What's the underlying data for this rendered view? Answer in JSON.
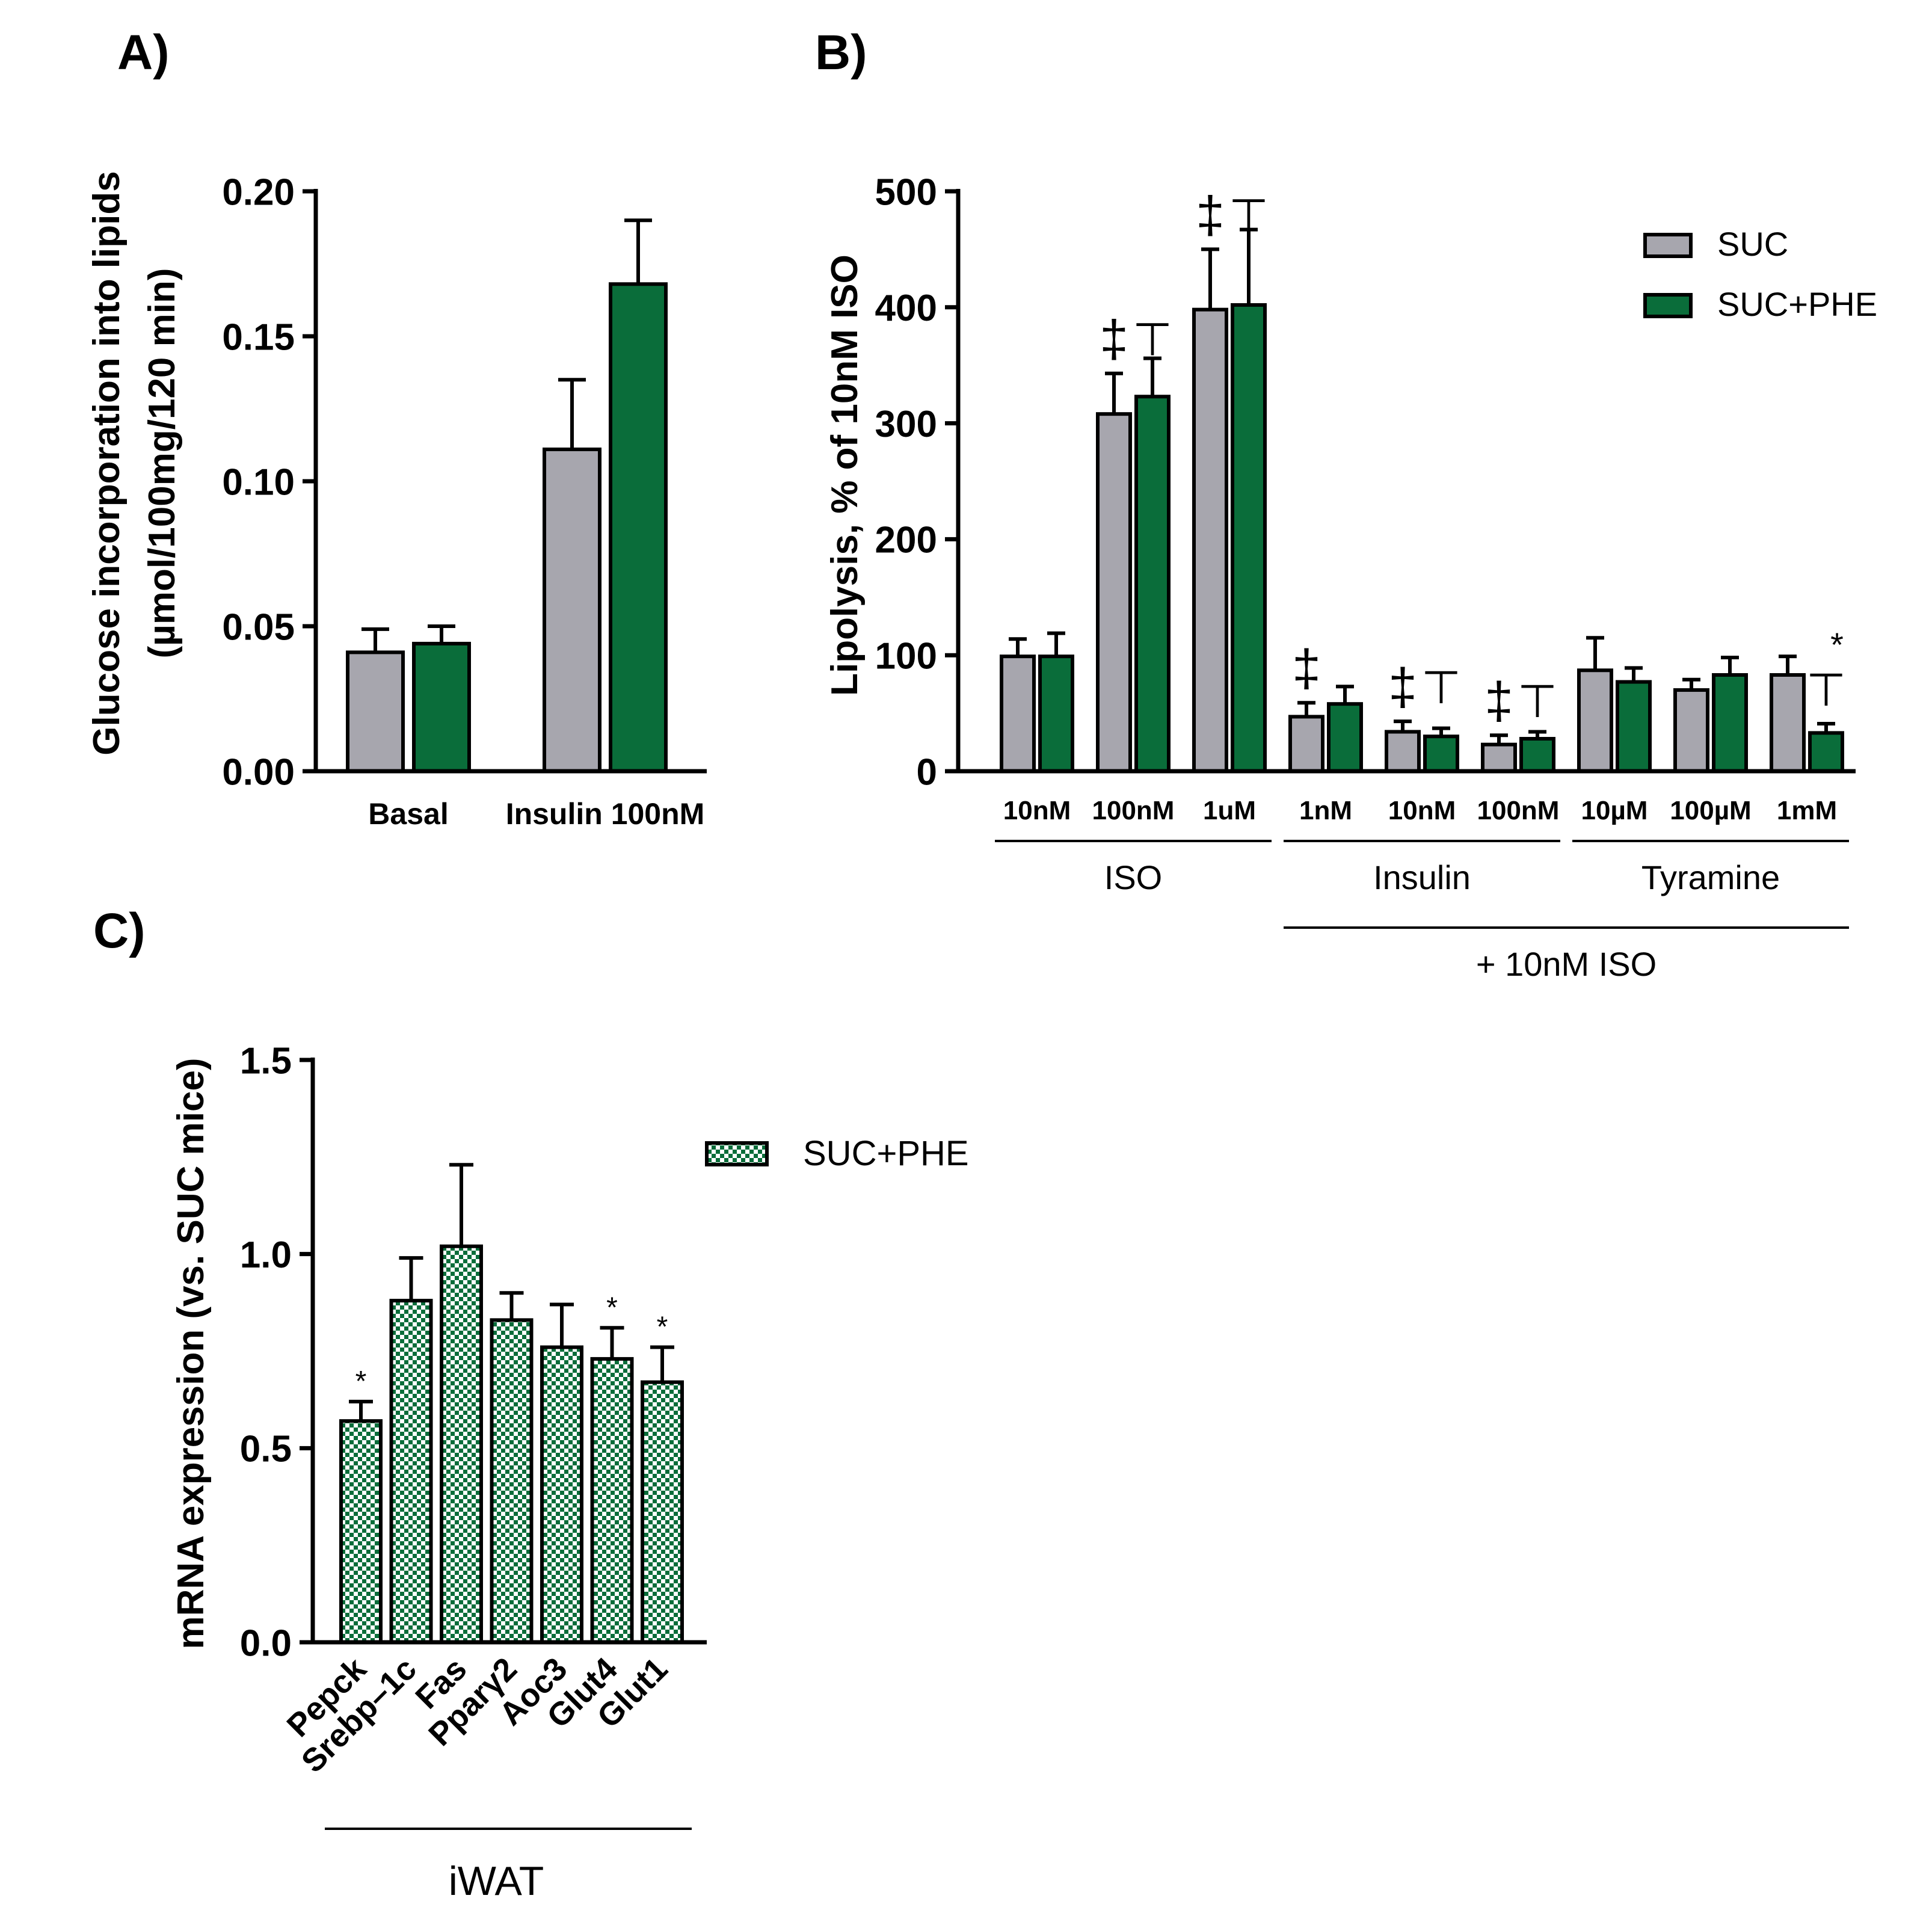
{
  "colors": {
    "suc": "#a7a6ae",
    "suc_phe": "#0a6d3a",
    "check_light": "#ffffff",
    "axis": "#000000"
  },
  "chart_data": [
    {
      "id": "A",
      "panel_label": "A)",
      "type": "bar",
      "ylabel_line1": "Glucose incorporation into lipids",
      "ylabel_line2": "(µmol/100mg/120 min)",
      "ylim": [
        0,
        0.2
      ],
      "yticks": [
        "0.00",
        "0.05",
        "0.10",
        "0.15",
        "0.20"
      ],
      "ytick_values": [
        0,
        0.05,
        0.1,
        0.15,
        0.2
      ],
      "categories": [
        "Basal",
        "Insulin 100nM"
      ],
      "series": [
        {
          "name": "SUC",
          "values": [
            0.041,
            0.111
          ],
          "errors": [
            0.008,
            0.024
          ]
        },
        {
          "name": "SUC+PHE",
          "values": [
            0.044,
            0.168
          ],
          "errors": [
            0.006,
            0.022
          ]
        }
      ]
    },
    {
      "id": "B",
      "panel_label": "B)",
      "type": "bar",
      "ylabel": "Lipolysis, % of 10nM ISO",
      "ylim": [
        0,
        500
      ],
      "yticks": [
        "0",
        "100",
        "200",
        "300",
        "400",
        "500"
      ],
      "ytick_values": [
        0,
        100,
        200,
        300,
        400,
        500
      ],
      "categories": [
        "10nM",
        "100nM",
        "1uM",
        "1nM",
        "10nM",
        "100nM",
        "10µM",
        "100µM",
        "1mM"
      ],
      "series": [
        {
          "name": "SUC",
          "values": [
            99,
            308,
            398,
            47,
            34,
            23,
            87,
            70,
            83
          ],
          "errors": [
            15,
            35,
            52,
            12,
            9,
            8,
            28,
            9,
            16
          ]
        },
        {
          "name": "SUC+PHE",
          "values": [
            99,
            323,
            402,
            58,
            30,
            28,
            77,
            83,
            33
          ],
          "errors": [
            20,
            33,
            65,
            15,
            7,
            6,
            12,
            15,
            8
          ]
        }
      ],
      "groups": [
        {
          "label": "ISO",
          "start": 0,
          "end": 2
        },
        {
          "label": "Insulin",
          "start": 3,
          "end": 5
        },
        {
          "label": "Tyramine",
          "start": 6,
          "end": 8
        }
      ],
      "supergroup": {
        "label": "+ 10nM ISO",
        "start": 3,
        "end": 8
      },
      "annotations": [
        {
          "category": 1,
          "double_dagger": "‡",
          "tee": "⊤"
        },
        {
          "category": 2,
          "double_dagger": "‡",
          "tee": "⊤"
        },
        {
          "category": 3,
          "double_dagger": "‡",
          "tee": ""
        },
        {
          "category": 4,
          "double_dagger": "‡",
          "tee": "⊤"
        },
        {
          "category": 5,
          "double_dagger": "‡",
          "tee": "⊤"
        },
        {
          "category": 8,
          "double_dagger": "",
          "tee": "⊤",
          "star": "*"
        }
      ],
      "legend": [
        "SUC",
        "SUC+PHE"
      ]
    },
    {
      "id": "C",
      "panel_label": "C)",
      "type": "bar",
      "ylabel": "mRNA expression (vs. SUC mice)",
      "ylim": [
        0,
        1.5
      ],
      "yticks": [
        "0.0",
        "0.5",
        "1.0",
        "1.5"
      ],
      "ytick_values": [
        0,
        0.5,
        1.0,
        1.5
      ],
      "categories": [
        "Pepck",
        "Srebp–1c",
        "Fas",
        "Pparγ2",
        "Aoc3",
        "Glut4",
        "Glut1"
      ],
      "series": [
        {
          "name": "SUC+PHE",
          "values": [
            0.57,
            0.88,
            1.02,
            0.83,
            0.76,
            0.73,
            0.67
          ],
          "errors": [
            0.05,
            0.11,
            0.21,
            0.07,
            0.11,
            0.08,
            0.09
          ]
        }
      ],
      "stars": [
        "*",
        "",
        "",
        "",
        "",
        "*",
        "*"
      ],
      "group_label": "iWAT",
      "legend": [
        "SUC+PHE"
      ]
    }
  ]
}
